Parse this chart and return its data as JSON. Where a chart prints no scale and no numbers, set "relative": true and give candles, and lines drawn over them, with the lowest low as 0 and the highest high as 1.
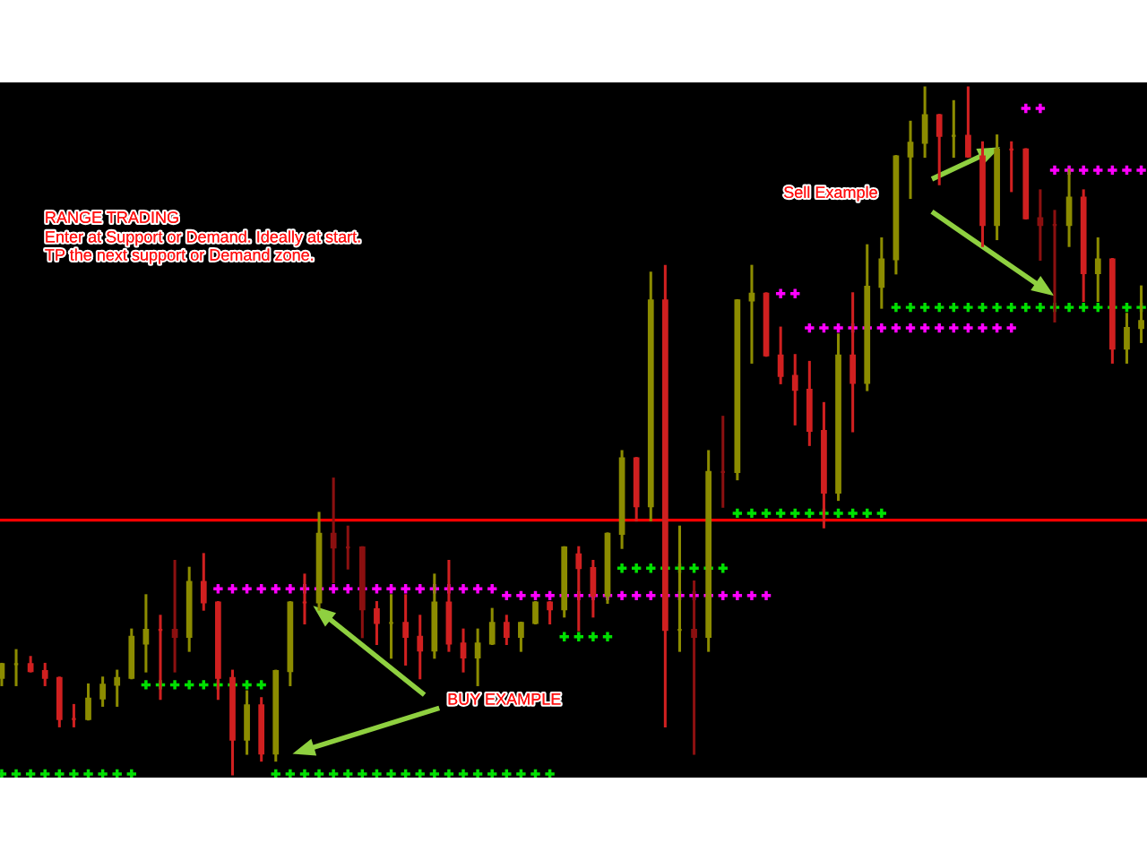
{
  "chart_data": {
    "type": "candlestick",
    "relative": true,
    "categories": [
      null,
      null,
      null,
      null,
      null,
      null,
      null,
      null,
      null,
      null,
      null,
      null,
      null,
      null,
      null,
      null,
      null,
      null,
      null,
      null,
      null,
      null,
      null,
      null,
      null,
      null,
      null,
      null,
      null,
      null,
      null,
      null,
      null,
      null,
      null,
      null,
      null,
      null,
      null,
      null,
      null,
      null,
      null,
      null,
      null,
      null,
      null,
      null,
      null,
      null,
      null,
      null,
      null,
      null,
      null,
      null,
      null,
      null,
      null,
      null,
      null,
      null,
      null,
      null,
      null,
      null,
      null,
      null,
      null,
      null,
      null,
      null,
      null,
      null,
      null,
      null,
      null,
      null,
      null,
      null
    ],
    "ohlc": [
      [
        0.14,
        0.16,
        0.13,
        0.16
      ],
      [
        0.16,
        0.18,
        0.13,
        0.16
      ],
      [
        0.16,
        0.17,
        0.15,
        0.15
      ],
      [
        0.15,
        0.16,
        0.13,
        0.14
      ],
      [
        0.14,
        0.14,
        0.07,
        0.08
      ],
      [
        0.08,
        0.1,
        0.07,
        0.08
      ],
      [
        0.08,
        0.13,
        0.08,
        0.11
      ],
      [
        0.11,
        0.14,
        0.1,
        0.13
      ],
      [
        0.13,
        0.15,
        0.1,
        0.14
      ],
      [
        0.14,
        0.21,
        0.14,
        0.2
      ],
      [
        0.19,
        0.26,
        0.15,
        0.21
      ],
      [
        0.21,
        0.23,
        0.11,
        0.21
      ],
      [
        0.21,
        0.31,
        0.15,
        0.2
      ],
      [
        0.2,
        0.3,
        0.18,
        0.28
      ],
      [
        0.28,
        0.32,
        0.24,
        0.25
      ],
      [
        0.25,
        0.25,
        0.11,
        0.14
      ],
      [
        0.14,
        0.15,
        0,
        0.05
      ],
      [
        0.05,
        0.12,
        0.03,
        0.1
      ],
      [
        0.1,
        0.11,
        0.02,
        0.03
      ],
      [
        0.03,
        0.15,
        0.02,
        0.15
      ],
      [
        0.15,
        0.25,
        0.13,
        0.25
      ],
      [
        0.25,
        0.29,
        0.22,
        0.25
      ],
      [
        0.25,
        0.38,
        0.24,
        0.35
      ],
      [
        0.35,
        0.43,
        0.28,
        0.33
      ],
      [
        0.33,
        0.36,
        0.3,
        0.33
      ],
      [
        0.33,
        0.33,
        0.2,
        0.24
      ],
      [
        0.24,
        0.25,
        0.19,
        0.22
      ],
      [
        0.22,
        0.26,
        0.17,
        0.22
      ],
      [
        0.22,
        0.26,
        0.16,
        0.2
      ],
      [
        0.2,
        0.23,
        0.14,
        0.18
      ],
      [
        0.18,
        0.29,
        0.17,
        0.25
      ],
      [
        0.25,
        0.31,
        0.18,
        0.19
      ],
      [
        0.19,
        0.21,
        0.15,
        0.17
      ],
      [
        0.17,
        0.21,
        0.13,
        0.19
      ],
      [
        0.19,
        0.24,
        0.19,
        0.22
      ],
      [
        0.22,
        0.23,
        0.19,
        0.2
      ],
      [
        0.2,
        0.22,
        0.18,
        0.22
      ],
      [
        0.22,
        0.25,
        0.22,
        0.25
      ],
      [
        0.25,
        0.25,
        0.22,
        0.24
      ],
      [
        0.24,
        0.33,
        0.23,
        0.33
      ],
      [
        0.32,
        0.33,
        0.21,
        0.3
      ],
      [
        0.3,
        0.31,
        0.23,
        0.26
      ],
      [
        0.26,
        0.35,
        0.25,
        0.35
      ],
      [
        0.35,
        0.47,
        0.33,
        0.46
      ],
      [
        0.46,
        0.46,
        0.37,
        0.39
      ],
      [
        0.39,
        0.73,
        0.37,
        0.69
      ],
      [
        0.69,
        0.74,
        0.07,
        0.21
      ],
      [
        0.21,
        0.36,
        0.18,
        0.21
      ],
      [
        0.21,
        0.28,
        0.03,
        0.2
      ],
      [
        0.2,
        0.47,
        0.18,
        0.44
      ],
      [
        0.44,
        0.52,
        0.39,
        0.44
      ],
      [
        0.44,
        0.69,
        0.43,
        0.69
      ],
      [
        0.69,
        0.74,
        0.6,
        0.7
      ],
      [
        0.7,
        0.7,
        0.61,
        0.61
      ],
      [
        0.61,
        0.65,
        0.57,
        0.58
      ],
      [
        0.58,
        0.61,
        0.51,
        0.56
      ],
      [
        0.56,
        0.6,
        0.48,
        0.5
      ],
      [
        0.5,
        0.54,
        0.36,
        0.41
      ],
      [
        0.41,
        0.64,
        0.4,
        0.61
      ],
      [
        0.61,
        0.7,
        0.5,
        0.57
      ],
      [
        0.57,
        0.77,
        0.56,
        0.71
      ],
      [
        0.71,
        0.78,
        0.68,
        0.75
      ],
      [
        0.75,
        0.9,
        0.73,
        0.9
      ],
      [
        0.9,
        0.95,
        0.84,
        0.92
      ],
      [
        0.92,
        1,
        0.9,
        0.96
      ],
      [
        0.96,
        0.96,
        0.86,
        0.93
      ],
      [
        0.93,
        0.98,
        0.9,
        0.93
      ],
      [
        0.93,
        1,
        0.9,
        0.9
      ],
      [
        0.9,
        0.92,
        0.77,
        0.8
      ],
      [
        0.8,
        0.93,
        0.78,
        0.91
      ],
      [
        0.91,
        0.92,
        0.85,
        0.91
      ],
      [
        0.91,
        0.91,
        0.81,
        0.81
      ],
      [
        0.81,
        0.85,
        0.75,
        0.8
      ],
      [
        0.8,
        0.82,
        0.66,
        0.8
      ],
      [
        0.8,
        0.88,
        0.77,
        0.84
      ],
      [
        0.84,
        0.85,
        0.69,
        0.73
      ],
      [
        0.73,
        0.78,
        0.69,
        0.75
      ],
      [
        0.75,
        0.75,
        0.6,
        0.62
      ],
      [
        0.62,
        0.67,
        0.6,
        0.65
      ],
      [
        0.65,
        0.71,
        0.63,
        0.66
      ]
    ],
    "colors": [
      "#8c8c00",
      "#8c8c00",
      "#d02020",
      "#d02020",
      "#d02020",
      "#d02020",
      "#8c8c00",
      "#8c8c00",
      "#8c8c00",
      "#8c8c00",
      "#8c8c00",
      "#d02020",
      "#8b1010",
      "#8c8c00",
      "#d02020",
      "#d02020",
      "#d02020",
      "#8c8c00",
      "#d02020",
      "#8c8c00",
      "#8c8c00",
      "#d02020",
      "#8c8c00",
      "#8b1010",
      "#8b1010",
      "#8b1010",
      "#d02020",
      "#8c8c00",
      "#d02020",
      "#d02020",
      "#8c8c00",
      "#d02020",
      "#d02020",
      "#8c8c00",
      "#8c8c00",
      "#d02020",
      "#8c8c00",
      "#8c8c00",
      "#d02020",
      "#8c8c00",
      "#d02020",
      "#d02020",
      "#8c8c00",
      "#8c8c00",
      "#d02020",
      "#8c8c00",
      "#d02020",
      "#8c8c00",
      "#8b1010",
      "#8c8c00",
      "#8b1010",
      "#8c8c00",
      "#8c8c00",
      "#d02020",
      "#d02020",
      "#d02020",
      "#d02020",
      "#d02020",
      "#8c8c00",
      "#d02020",
      "#8c8c00",
      "#8c8c00",
      "#8c8c00",
      "#8c8c00",
      "#8c8c00",
      "#d02020",
      "#8c8c00",
      "#d02020",
      "#d02020",
      "#8c8c00",
      "#d02020",
      "#d02020",
      "#8b1010",
      "#8b1010",
      "#8c8c00",
      "#d02020",
      "#8c8c00",
      "#d02020",
      "#8c8c00",
      "#8c8c00"
    ],
    "series": [
      {
        "type": "scatter",
        "marker": "cross",
        "color": "#00e000",
        "values": [
          0,
          0,
          0,
          0,
          0,
          0,
          0,
          0,
          0,
          0,
          0.13,
          0.13,
          0.13,
          0.13,
          0.13,
          0.13,
          0.13,
          0.13,
          0.13,
          0,
          0,
          0,
          0,
          0,
          0,
          0,
          0,
          0,
          0,
          0,
          0,
          0,
          0,
          0,
          0,
          0,
          0,
          0,
          0,
          0.2,
          0.2,
          0.2,
          0.2,
          0.3,
          0.3,
          0.3,
          0.3,
          0.3,
          0.3,
          0.3,
          0.3,
          0.38,
          0.38,
          0.38,
          0.38,
          0.38,
          0.38,
          0.38,
          0.38,
          0.38,
          0.38,
          0.38,
          0.68,
          0.68,
          0.68,
          0.68,
          0.68,
          0.68,
          0.68,
          0.68,
          0.68,
          0.68,
          0.68,
          0.68,
          0.68,
          0.68,
          0.68,
          0.68,
          0.68,
          0.68
        ]
      },
      {
        "type": "scatter",
        "marker": "cross",
        "color": "#ff00ff",
        "values": [
          null,
          null,
          null,
          null,
          null,
          null,
          null,
          null,
          null,
          null,
          null,
          null,
          null,
          null,
          null,
          0.27,
          0.27,
          0.27,
          0.27,
          0.27,
          0.27,
          0.27,
          0.27,
          0.27,
          0.27,
          0.27,
          0.27,
          0.27,
          0.27,
          0.27,
          0.27,
          0.27,
          0.27,
          0.27,
          0.27,
          0.26,
          0.26,
          0.26,
          0.26,
          0.26,
          0.26,
          0.26,
          0.26,
          0.26,
          0.26,
          0.26,
          0.26,
          0.26,
          0.26,
          0.26,
          0.26,
          0.26,
          0.26,
          0.26,
          0.7,
          0.7,
          0.65,
          0.65,
          0.65,
          0.65,
          0.65,
          0.65,
          0.65,
          0.65,
          0.65,
          0.65,
          0.65,
          0.65,
          0.65,
          0.65,
          0.65,
          0.97,
          0.97,
          0.88,
          0.88,
          0.88,
          0.88,
          0.88,
          0.88,
          0.88
        ]
      }
    ],
    "ref_lines": [
      {
        "axis": "y",
        "value": 0.37,
        "color": "#ff0000"
      }
    ],
    "annotations": [
      "RANGE TRADING",
      "Enter at Support or Demand. Ideally at start.",
      "TP the next support or Demand zone.",
      "BUY EXAMPLE",
      "Sell Example"
    ]
  }
}
